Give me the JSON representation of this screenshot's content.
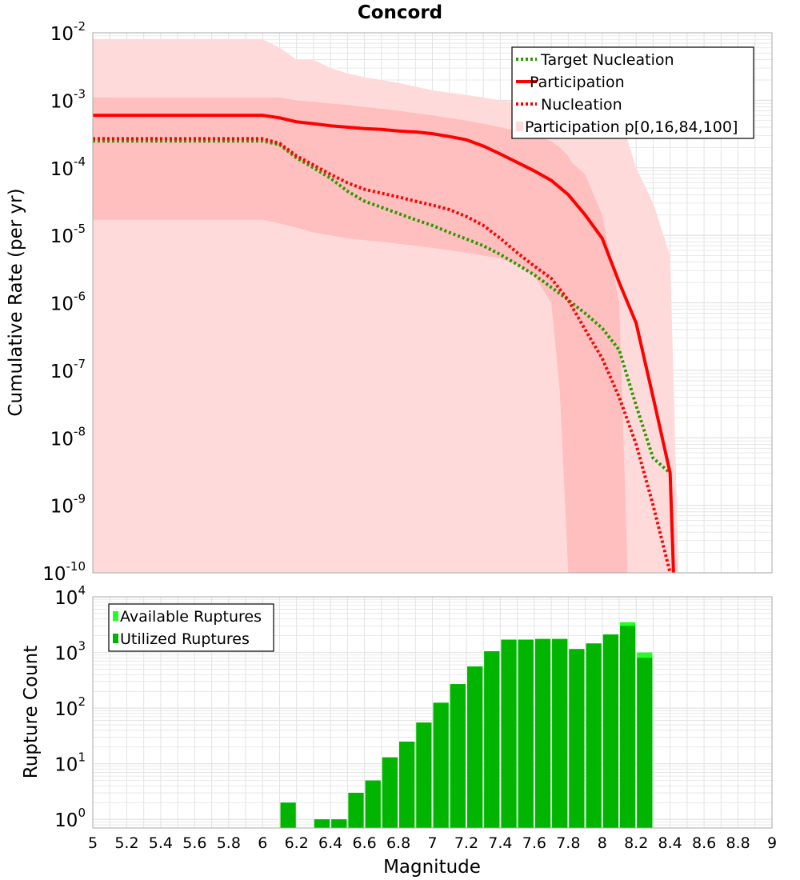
{
  "colors": {
    "outer_band": "#ffdada",
    "inner_band": "#ffbfbf",
    "participation": "#ff0000",
    "nucleation": "#ff0000",
    "target_nucleation": "#2a9a00",
    "available": "#22ff22",
    "utilized": "#00b400",
    "grid": "#e3e3e3",
    "frame": "#aaaaaa"
  },
  "chart_data": [
    {
      "type": "line",
      "title": "Concord",
      "xlabel": "",
      "ylabel": "Cumulative Rate (per yr)",
      "xlim": [
        5,
        9
      ],
      "ylim": [
        1e-10,
        0.01
      ],
      "yscale": "log",
      "ytick_exponents": [
        "-2",
        "-3",
        "-4",
        "-5",
        "-6",
        "-7",
        "-8",
        "-9",
        "-10"
      ],
      "legend_position": "top-right",
      "legend": [
        "Target Nucleation",
        "Participation",
        "Nucleation",
        "Participation p[0,16,84,100]"
      ],
      "series": [
        {
          "name": "Target Nucleation",
          "style": "dotted",
          "x": [
            5.0,
            5.2,
            5.4,
            5.6,
            5.8,
            6.0,
            6.1,
            6.2,
            6.3,
            6.4,
            6.5,
            6.6,
            6.7,
            6.8,
            6.9,
            7.0,
            7.1,
            7.2,
            7.3,
            7.4,
            7.5,
            7.6,
            7.7,
            7.8,
            7.9,
            8.0,
            8.1,
            8.2,
            8.3,
            8.4
          ],
          "y": [
            0.00025,
            0.00025,
            0.00025,
            0.00025,
            0.00025,
            0.00025,
            0.00022,
            0.00014,
            0.0001,
            7e-05,
            4.5e-05,
            3.2e-05,
            2.6e-05,
            2.1e-05,
            1.7e-05,
            1.4e-05,
            1.1e-05,
            8.8e-06,
            7e-06,
            5.2e-06,
            3.7e-06,
            2.6e-06,
            1.7e-06,
            1.1e-06,
            7e-07,
            4.2e-07,
            2e-07,
            3e-08,
            5e-09,
            3e-09
          ]
        },
        {
          "name": "Participation",
          "style": "solid",
          "x": [
            5.0,
            5.2,
            5.4,
            5.6,
            5.8,
            6.0,
            6.1,
            6.2,
            6.3,
            6.4,
            6.5,
            6.6,
            6.7,
            6.8,
            6.9,
            7.0,
            7.1,
            7.2,
            7.3,
            7.4,
            7.5,
            7.6,
            7.7,
            7.8,
            7.9,
            8.0,
            8.1,
            8.2,
            8.3,
            8.4,
            8.42
          ],
          "y": [
            0.0006,
            0.0006,
            0.0006,
            0.0006,
            0.0006,
            0.0006,
            0.00055,
            0.00048,
            0.00045,
            0.00042,
            0.0004,
            0.00038,
            0.00037,
            0.00035,
            0.00034,
            0.00032,
            0.00029,
            0.00026,
            0.00021,
            0.00016,
            0.00012,
            9e-05,
            6.5e-05,
            4e-05,
            2e-05,
            9e-06,
            2e-06,
            5e-07,
            4e-08,
            3e-09,
            1e-10
          ]
        },
        {
          "name": "Nucleation",
          "style": "dotted",
          "x": [
            5.0,
            5.2,
            5.4,
            5.6,
            5.8,
            6.0,
            6.1,
            6.2,
            6.3,
            6.4,
            6.5,
            6.6,
            6.7,
            6.8,
            6.9,
            7.0,
            7.1,
            7.2,
            7.3,
            7.4,
            7.5,
            7.6,
            7.7,
            7.8,
            7.9,
            8.0,
            8.1,
            8.2,
            8.3,
            8.4
          ],
          "y": [
            0.00027,
            0.00027,
            0.00027,
            0.00027,
            0.00027,
            0.00027,
            0.00023,
            0.00015,
            0.00011,
            8e-05,
            6e-05,
            4.8e-05,
            4.2e-05,
            3.7e-05,
            3.2e-05,
            2.8e-05,
            2.4e-05,
            1.9e-05,
            1.4e-05,
            9e-06,
            5.5e-06,
            3.5e-06,
            2.3e-06,
            1.1e-06,
            4e-07,
            1.5e-07,
            4e-08,
            8e-09,
            1e-09,
            1e-10
          ]
        }
      ],
      "bands": [
        {
          "name": "Participation p[0,100]",
          "x": [
            5.0,
            6.0,
            6.1,
            6.2,
            6.3,
            6.4,
            6.5,
            6.6,
            6.7,
            6.8,
            6.9,
            7.0,
            7.1,
            7.2,
            7.3,
            7.4,
            7.5,
            7.6,
            7.7,
            7.8,
            7.9,
            8.0,
            8.1,
            8.2,
            8.3,
            8.4,
            8.45
          ],
          "upper": [
            0.008,
            0.008,
            0.006,
            0.004,
            0.004,
            0.003,
            0.0025,
            0.0022,
            0.002,
            0.0018,
            0.0016,
            0.0014,
            0.0013,
            0.0012,
            0.0011,
            0.001,
            0.00095,
            0.0009,
            0.00085,
            0.0008,
            0.00075,
            0.0007,
            0.00065,
            0.0001,
            3e-05,
            5e-06,
            1e-10
          ],
          "lower": [
            1e-10,
            1e-10,
            1e-10,
            1e-10,
            1e-10,
            1e-10,
            1e-10,
            1e-10,
            1e-10,
            1e-10,
            1e-10,
            1e-10,
            1e-10,
            1e-10,
            1e-10,
            1e-10,
            1e-10,
            1e-10,
            1e-10,
            1e-10,
            1e-10,
            1e-10,
            1e-10,
            1e-10,
            1e-10,
            1e-10,
            1e-10
          ]
        },
        {
          "name": "Participation p[16,84]",
          "x": [
            5.0,
            6.0,
            6.1,
            6.2,
            6.3,
            6.4,
            6.5,
            6.6,
            6.7,
            6.8,
            6.9,
            7.0,
            7.1,
            7.2,
            7.3,
            7.4,
            7.5,
            7.6,
            7.7,
            7.75,
            7.8,
            7.82,
            7.9,
            8.0,
            8.1,
            8.15
          ],
          "upper": [
            0.0011,
            0.0011,
            0.0011,
            0.001,
            0.00095,
            0.0009,
            0.00085,
            0.0008,
            0.00075,
            0.0007,
            0.00065,
            0.0006,
            0.00055,
            0.0005,
            0.00045,
            0.0004,
            0.00035,
            0.0003,
            0.00025,
            0.0002,
            0.00015,
            0.00012,
            8e-05,
            2e-05,
            1e-06,
            1e-10
          ],
          "lower": [
            1.7e-05,
            1.7e-05,
            1.5e-05,
            1.3e-05,
            1.1e-05,
            1e-05,
            9e-06,
            8.5e-06,
            8e-06,
            7.5e-06,
            7e-06,
            6.5e-06,
            6e-06,
            5.5e-06,
            5e-06,
            4.5e-06,
            3.7e-06,
            2.5e-06,
            1e-06,
            5e-08,
            1e-10,
            1e-10,
            1e-10,
            1e-10,
            1e-10,
            1e-10
          ]
        }
      ]
    },
    {
      "type": "bar",
      "title": "",
      "xlabel": "Magnitude",
      "ylabel": "Rupture Count",
      "xlim": [
        5,
        9
      ],
      "ylim": [
        0.7,
        10000
      ],
      "yscale": "log",
      "ytick_exponents": [
        "4",
        "3",
        "2",
        "1",
        "0"
      ],
      "x_ticks": [
        "5",
        "5.2",
        "5.4",
        "5.6",
        "5.8",
        "6",
        "6.2",
        "6.4",
        "6.6",
        "6.8",
        "7",
        "7.2",
        "7.4",
        "7.6",
        "7.8",
        "8",
        "8.2",
        "8.4",
        "8.6",
        "8.8",
        "9"
      ],
      "legend_position": "top-left",
      "legend": [
        "Available Ruptures",
        "Utilized Ruptures"
      ],
      "bin_centers": [
        6.15,
        6.25,
        6.35,
        6.45,
        6.55,
        6.65,
        6.75,
        6.85,
        6.95,
        7.05,
        7.15,
        7.25,
        7.35,
        7.45,
        7.55,
        7.65,
        7.75,
        7.85,
        7.95,
        8.05,
        8.15,
        8.25
      ],
      "series": [
        {
          "name": "Available Ruptures",
          "values": [
            2,
            0,
            1,
            1,
            3,
            5,
            13,
            25,
            55,
            125,
            270,
            560,
            1050,
            1700,
            1700,
            1750,
            1750,
            1150,
            1450,
            2100,
            3500,
            1000
          ]
        },
        {
          "name": "Utilized Ruptures",
          "values": [
            2,
            0,
            1,
            1,
            3,
            5,
            13,
            25,
            55,
            125,
            270,
            560,
            1050,
            1700,
            1700,
            1750,
            1750,
            1150,
            1450,
            2100,
            3000,
            800
          ]
        }
      ]
    }
  ]
}
